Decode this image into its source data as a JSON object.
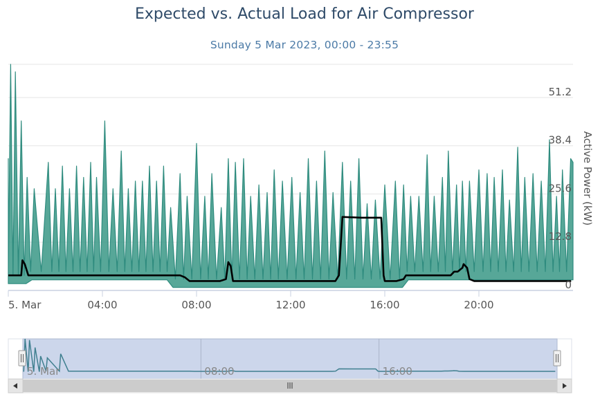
{
  "chart_data": {
    "type": "area",
    "title": "Expected vs. Actual Load for Air Compressor",
    "subtitle": "Sunday 5 Mar 2023, 00:00 - 23:55",
    "ylabel": "Active Power (kW)",
    "xlabel": "",
    "x_range": [
      "00:00",
      "23:55"
    ],
    "ylim": [
      0,
      60
    ],
    "y_ticks": [
      "0",
      "12.8",
      "25.6",
      "38.4",
      "51.2"
    ],
    "y_tick_values": [
      0,
      12.8,
      25.6,
      38.4,
      51.2
    ],
    "x_ticks": [
      "5. Mar",
      "04:00",
      "08:00",
      "12:00",
      "16:00",
      "20:00"
    ],
    "x_tick_hours": [
      0,
      4,
      8,
      12,
      16,
      20
    ],
    "grid": true,
    "colors": {
      "actual": "#2e8b7e",
      "actual_fill": "#3a9886",
      "expected": "#000000"
    },
    "series": [
      {
        "type": "arearange",
        "peak_hours": [
          0.1,
          0.3,
          0.55,
          0.8,
          1.1,
          1.7,
          2.0,
          2.3,
          2.6,
          2.9,
          3.2,
          3.5,
          3.75,
          4.1,
          4.45,
          4.8,
          5.1,
          5.4,
          5.7,
          6.0,
          6.3,
          6.6,
          6.9,
          7.3,
          7.6,
          8.0,
          8.35,
          8.65,
          9.05,
          9.35,
          9.65,
          10.0,
          10.3,
          10.65,
          11.0,
          11.3,
          11.65,
          12.05,
          12.4,
          12.75,
          13.1,
          13.45,
          13.8,
          14.2,
          14.55,
          14.9,
          15.25,
          15.6,
          16.0,
          16.45,
          16.8,
          17.1,
          17.45,
          17.8,
          18.1,
          18.45,
          18.7,
          19.05,
          19.3,
          19.6,
          20.0,
          20.35,
          20.65,
          21.0,
          21.3,
          21.65,
          21.95,
          22.3,
          22.65,
          23.0,
          23.3,
          23.55,
          23.9
        ],
        "peak_values": [
          60,
          58,
          45,
          30,
          27,
          34,
          27,
          33,
          27,
          33,
          30,
          34,
          30,
          45,
          27,
          37,
          27,
          29,
          29,
          33,
          29,
          33,
          22,
          31,
          25,
          39,
          25,
          31,
          22,
          35,
          34,
          35,
          25,
          28,
          26,
          32,
          29,
          30,
          26,
          35,
          29,
          37,
          26,
          34,
          29,
          35,
          23,
          24,
          28,
          29,
          28,
          25,
          25,
          36,
          25,
          30,
          37,
          28,
          29,
          29,
          32,
          31,
          30,
          32,
          24,
          38,
          30,
          31,
          29,
          40,
          25,
          32,
          35
        ],
        "trough_values": [
          3,
          3,
          3,
          3,
          4,
          4,
          4,
          4,
          4,
          4,
          4,
          4,
          4,
          4,
          4,
          4,
          4,
          4,
          4,
          4,
          4,
          4,
          4,
          2,
          2,
          2,
          2,
          2,
          2,
          2,
          2,
          2,
          2,
          2,
          2,
          2,
          2,
          2,
          2,
          2,
          2,
          2,
          2,
          2,
          2,
          2,
          2,
          2,
          2,
          2,
          2,
          4,
          4,
          4,
          4,
          4,
          4,
          4,
          4,
          4,
          4,
          4,
          4,
          4,
          4,
          4,
          4,
          4,
          4,
          4,
          4,
          4,
          4
        ]
      },
      {
        "type": "line",
        "hours": [
          0,
          0.55,
          0.6,
          0.7,
          0.85,
          1.0,
          1.5,
          2.0,
          4.0,
          6.0,
          7.3,
          7.5,
          7.7,
          8.0,
          9.0,
          9.25,
          9.35,
          9.45,
          9.55,
          9.65,
          10.0,
          12.0,
          13.9,
          14.05,
          14.2,
          15.0,
          15.85,
          15.95,
          16.0,
          16.5,
          16.8,
          16.9,
          18.0,
          18.8,
          18.95,
          19.1,
          19.3,
          19.35,
          19.5,
          19.6,
          19.8,
          20.0,
          22.0,
          23.92
        ],
        "values": [
          4.0,
          4.0,
          8.0,
          7.0,
          4.0,
          4.0,
          4.0,
          4.0,
          4.0,
          4.0,
          4.0,
          3.5,
          2.5,
          2.5,
          2.5,
          3.0,
          7.5,
          6.5,
          2.5,
          2.5,
          2.5,
          2.5,
          2.5,
          4.0,
          19.5,
          19.3,
          19.3,
          4.0,
          2.5,
          2.5,
          3.0,
          4.0,
          4.0,
          4.0,
          5.0,
          5.0,
          6.0,
          7.0,
          6.0,
          3.0,
          2.5,
          2.5,
          2.5,
          2.5
        ]
      }
    ]
  }
}
